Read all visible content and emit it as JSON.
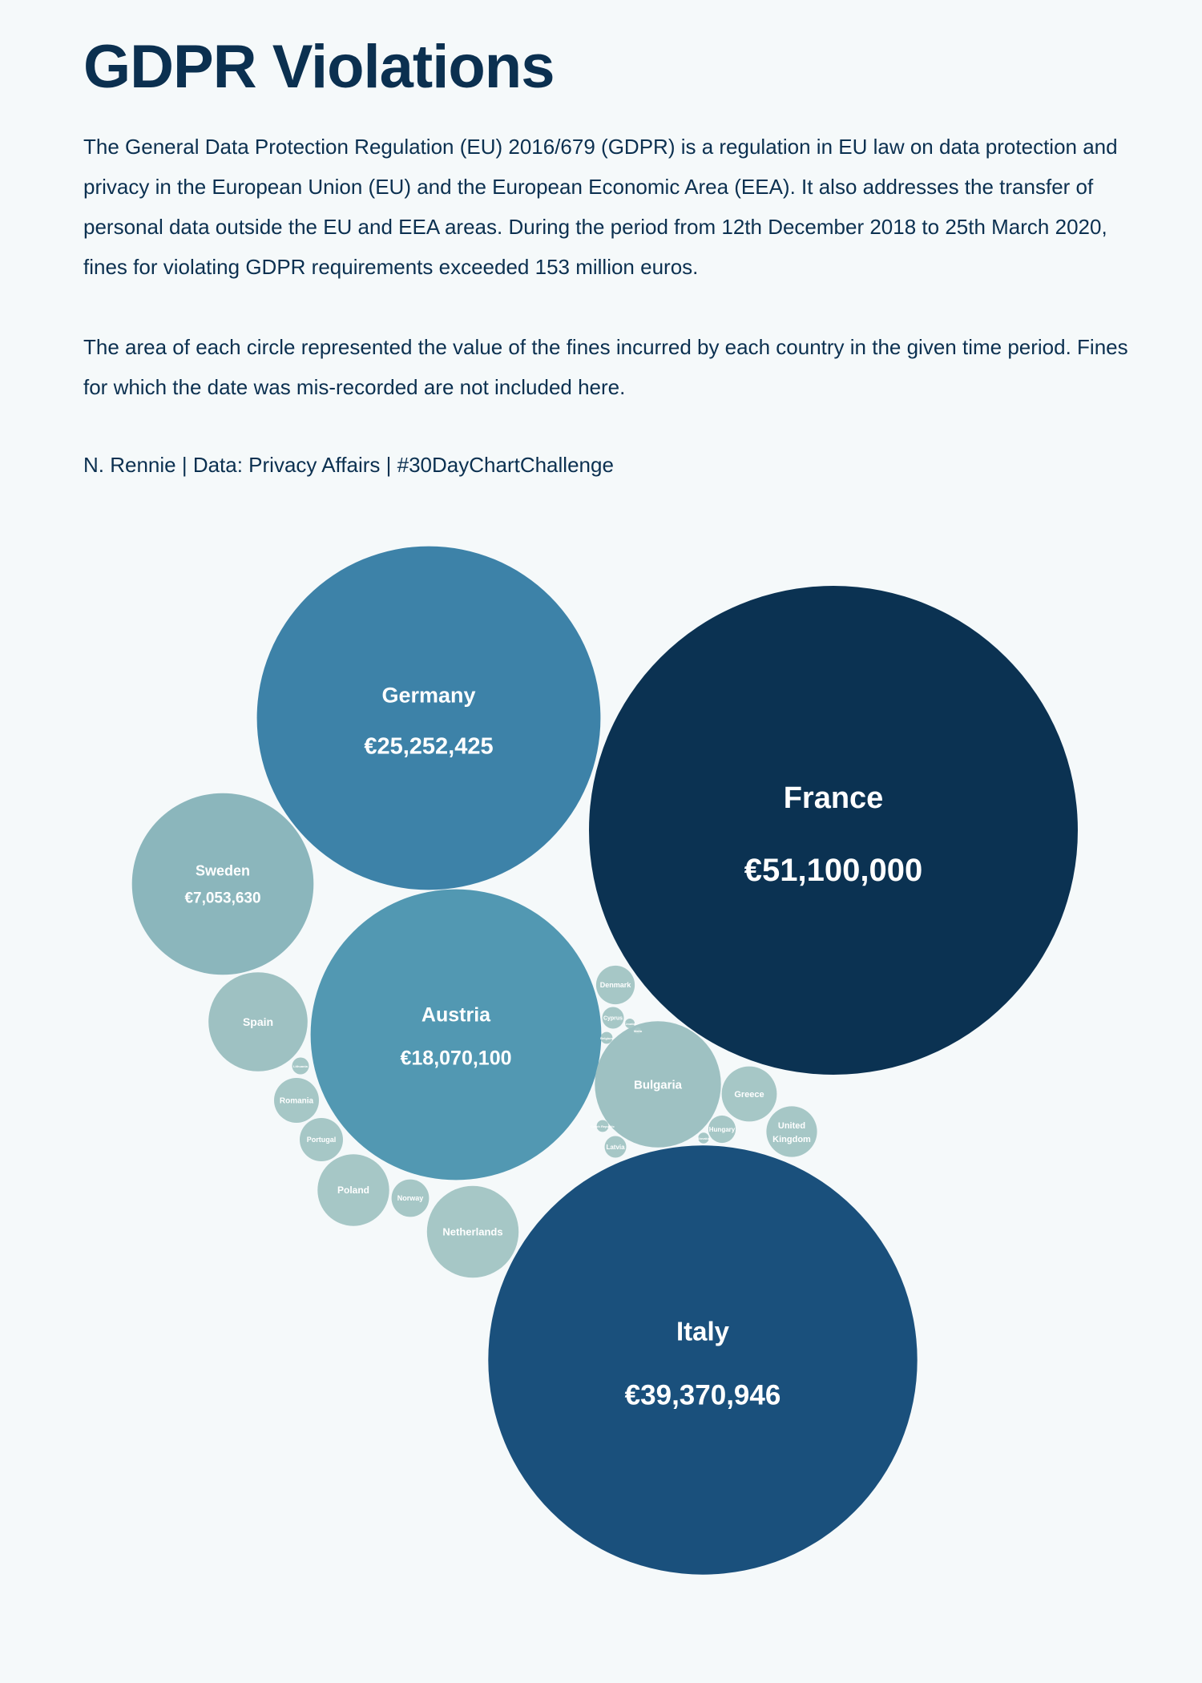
{
  "header": {
    "title": "GDPR Violations",
    "description": "The General Data Protection Regulation (EU) 2016/679 (GDPR) is a regulation in EU law on data protection and privacy in the European Union (EU) and the European Economic Area (EEA). It also addresses the transfer of personal data outside the EU and EEA areas. During the period from 12th December 2018 to 25th March 2020, fines for violating GDPR requirements exceeded 153 million euros.",
    "note": "The area of each circle represented the value of the fines incurred by each country in the given time period. Fines for which the date was mis-recorded are not included here.",
    "caption": "N. Rennie | Data: Privacy Affairs | #30DayChartChallenge"
  },
  "chart_data": {
    "type": "bubble",
    "encoding": "circle area proportional to total fines (EUR)",
    "colors": {
      "background": "#f5f9fa",
      "text": "#ffffff"
    },
    "series": [
      {
        "name": "France",
        "value": 51100000,
        "value_label": "€51,100,000",
        "color": "#0b3252"
      },
      {
        "name": "Italy",
        "value": 39370946,
        "value_label": "€39,370,946",
        "color": "#1a507c"
      },
      {
        "name": "Germany",
        "value": 25252425,
        "value_label": "€25,252,425",
        "color": "#3d82a8"
      },
      {
        "name": "Austria",
        "value": 18070100,
        "value_label": "€18,070,100",
        "color": "#5298b2"
      },
      {
        "name": "Sweden",
        "value": 7053630,
        "value_label": "€7,053,630",
        "color": "#8bb6bc"
      },
      {
        "name": "Bulgaria",
        "value": 3400000,
        "value_label": "",
        "color": "#9ec1c2"
      },
      {
        "name": "Spain",
        "value": 2100000,
        "value_label": "",
        "color": "#9ec1c2"
      },
      {
        "name": "Netherlands",
        "value": 1800000,
        "value_label": "",
        "color": "#a6c7c6"
      },
      {
        "name": "Poland",
        "value": 1100000,
        "value_label": "",
        "color": "#a6c7c6"
      },
      {
        "name": "Greece",
        "value": 650000,
        "value_label": "",
        "color": "#a6c7c6"
      },
      {
        "name": "United Kingdom",
        "value": 550000,
        "value_label": "",
        "color": "#a6c7c6"
      },
      {
        "name": "Romania",
        "value": 430000,
        "value_label": "",
        "color": "#a6c7c6"
      },
      {
        "name": "Denmark",
        "value": 320000,
        "value_label": "",
        "color": "#a6c7c6"
      },
      {
        "name": "Portugal",
        "value": 400000,
        "value_label": "",
        "color": "#a6c7c6"
      },
      {
        "name": "Norway",
        "value": 300000,
        "value_label": "",
        "color": "#a6c7c6"
      },
      {
        "name": "Hungary",
        "value": 160000,
        "value_label": "",
        "color": "#a6c7c6"
      },
      {
        "name": "Latvia",
        "value": 100000,
        "value_label": "",
        "color": "#a6c7c6"
      },
      {
        "name": "Cyprus",
        "value": 100000,
        "value_label": "",
        "color": "#a6c7c6"
      },
      {
        "name": "Lithuania",
        "value": 60000,
        "value_label": "",
        "color": "#a6c7c6"
      },
      {
        "name": "Czech Republic",
        "value": 30000,
        "value_label": "",
        "color": "#a6c7c6"
      },
      {
        "name": "Belgium",
        "value": 30000,
        "value_label": "",
        "color": "#a6c7c6"
      },
      {
        "name": "Slovakia",
        "value": 25000,
        "value_label": "",
        "color": "#a6c7c6"
      },
      {
        "name": "Croatia",
        "value": 20000,
        "value_label": "",
        "color": "#a6c7c6"
      },
      {
        "name": "Malta",
        "value": 10000,
        "value_label": "",
        "color": "#a6c7c6"
      }
    ]
  }
}
